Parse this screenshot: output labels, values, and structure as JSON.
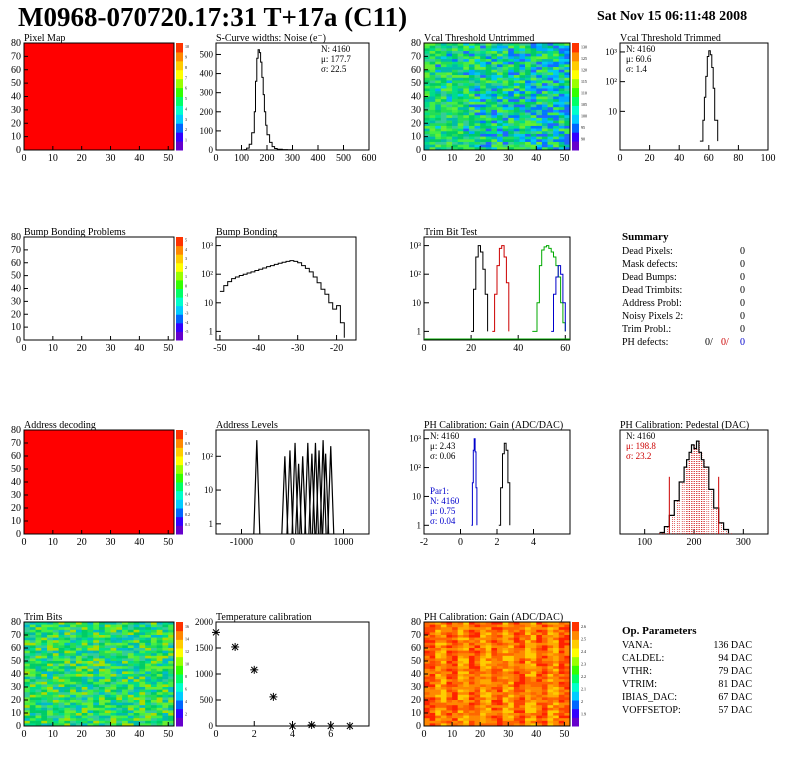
{
  "header": {
    "title": "M0968-070720.17:31 T+17a (C11)",
    "timestamp": "Sat Nov 15 06:11:48 2008"
  },
  "colors": {
    "hist": "#000000",
    "red": "#cc0000",
    "green": "#00aa00",
    "blue": "#0000cc",
    "map_red": "#ff0000"
  },
  "chart_data": [
    {
      "id": "pixel-map",
      "type": "heatmap",
      "title": "Pixel Map",
      "fill": "uniform-max",
      "xticks": [
        0,
        10,
        20,
        30,
        40,
        50
      ],
      "yticks": [
        0,
        10,
        20,
        30,
        40,
        50,
        60,
        70,
        80
      ],
      "colorbar_ticks": [
        "1",
        "2",
        "3",
        "4",
        "5",
        "6",
        "7",
        "8",
        "9",
        "10"
      ]
    },
    {
      "id": "noise",
      "type": "line",
      "title": "S-Curve widths: Noise (e⁻)",
      "xticks": [
        0,
        100,
        200,
        300,
        400,
        500,
        600
      ],
      "yticks": [
        0,
        100,
        200,
        300,
        400,
        500
      ],
      "xlim": [
        0,
        600
      ],
      "ylim": [
        0,
        560
      ],
      "stats": [
        "N: 4160",
        "μ: 177.7",
        "σ: 22.5"
      ],
      "x": [
        100,
        110,
        120,
        130,
        140,
        150,
        155,
        160,
        165,
        170,
        175,
        180,
        185,
        190,
        195,
        200,
        210,
        220,
        230,
        240,
        260,
        280,
        300
      ],
      "y": [
        0,
        2,
        10,
        30,
        90,
        200,
        360,
        480,
        525,
        510,
        460,
        380,
        290,
        200,
        130,
        80,
        40,
        18,
        8,
        4,
        2,
        1,
        0
      ]
    },
    {
      "id": "vcal-untrimmed",
      "type": "heatmap",
      "title": "Vcal Threshold Untrimmed",
      "fill": "noisy-green-blue",
      "xticks": [
        0,
        10,
        20,
        30,
        40,
        50
      ],
      "yticks": [
        0,
        10,
        20,
        30,
        40,
        50,
        60,
        70,
        80
      ],
      "colorbar_ticks": [
        "90",
        "95",
        "100",
        "105",
        "110",
        "115",
        "120",
        "125",
        "130"
      ]
    },
    {
      "id": "vcal-trimmed",
      "type": "line",
      "title": "Vcal Threshold Trimmed",
      "log": true,
      "xticks": [
        0,
        20,
        40,
        60,
        80,
        100
      ],
      "yticks": [
        "10",
        "10²",
        "10³"
      ],
      "xlim": [
        0,
        100
      ],
      "ylim": [
        0.5,
        2000
      ],
      "stats": [
        "N: 4160",
        "μ: 60.6",
        "σ:  1.4"
      ],
      "x": [
        54,
        56,
        57,
        58,
        59,
        60,
        61,
        62,
        63,
        64,
        66
      ],
      "y": [
        1,
        5,
        30,
        150,
        700,
        1100,
        800,
        300,
        60,
        5,
        1
      ]
    },
    {
      "id": "bump-problems",
      "type": "heatmap",
      "title": "Bump Bonding Problems",
      "fill": "empty",
      "xticks": [
        0,
        10,
        20,
        30,
        40,
        50
      ],
      "yticks": [
        0,
        10,
        20,
        30,
        40,
        50,
        60,
        70,
        80
      ],
      "colorbar_ticks": [
        "-5",
        "-4",
        "-3",
        "-2",
        "-1",
        "0",
        "1",
        "2",
        "3",
        "4",
        "5"
      ]
    },
    {
      "id": "bump-bonding",
      "type": "line",
      "title": "Bump Bonding",
      "log": true,
      "xticks": [
        -50,
        -40,
        -30,
        -20
      ],
      "yticks": [
        "1",
        "10",
        "10²",
        "10³"
      ],
      "xlim": [
        -51,
        -15
      ],
      "ylim": [
        0.5,
        2000
      ],
      "x": [
        -50,
        -49,
        -48,
        -47,
        -46,
        -45,
        -44,
        -43,
        -42,
        -41,
        -40,
        -39,
        -38,
        -37,
        -36,
        -35,
        -34,
        -33,
        -32,
        -31,
        -30,
        -29,
        -28,
        -27,
        -26,
        -25,
        -24,
        -23,
        -22,
        -21,
        -20,
        -19,
        -18
      ],
      "y": [
        25,
        40,
        55,
        70,
        80,
        90,
        100,
        110,
        120,
        135,
        150,
        165,
        185,
        200,
        220,
        240,
        260,
        280,
        300,
        280,
        250,
        200,
        160,
        120,
        80,
        50,
        30,
        20,
        10,
        6,
        8,
        2,
        0.6
      ]
    },
    {
      "id": "trim-bits-test",
      "type": "line",
      "title": "Trim Bit Test",
      "log": true,
      "xticks": [
        0,
        20,
        40,
        60
      ],
      "yticks": [
        "1",
        "10",
        "10²",
        "10³"
      ],
      "xlim": [
        0,
        62
      ],
      "ylim": [
        0.5,
        2000
      ],
      "series": [
        {
          "color": "black",
          "x": [
            20,
            21,
            22,
            23,
            24,
            25,
            26,
            27
          ],
          "y": [
            1,
            30,
            400,
            1000,
            600,
            150,
            20,
            1
          ]
        },
        {
          "color": "red",
          "x": [
            29,
            30,
            31,
            32,
            33,
            34,
            35,
            36
          ],
          "y": [
            1,
            20,
            200,
            800,
            1000,
            400,
            50,
            1
          ]
        },
        {
          "color": "green",
          "x": [
            46,
            48,
            49,
            50,
            51,
            52,
            53,
            54,
            55,
            56,
            57,
            58,
            59,
            60
          ],
          "y": [
            1,
            10,
            200,
            700,
            900,
            1000,
            800,
            600,
            400,
            200,
            80,
            10,
            2,
            1
          ]
        },
        {
          "color": "blue",
          "x": [
            54,
            55,
            56,
            57,
            58,
            59,
            60
          ],
          "y": [
            1,
            20,
            80,
            200,
            100,
            10,
            1
          ]
        }
      ]
    },
    {
      "id": "address-decoding",
      "type": "heatmap",
      "title": "Address decoding",
      "fill": "uniform-max",
      "xticks": [
        0,
        10,
        20,
        30,
        40,
        50
      ],
      "yticks": [
        0,
        10,
        20,
        30,
        40,
        50,
        60,
        70,
        80
      ],
      "colorbar_ticks": [
        "0.1",
        "0.2",
        "0.3",
        "0.4",
        "0.5",
        "0.6",
        "0.7",
        "0.8",
        "0.9",
        "1"
      ]
    },
    {
      "id": "address-levels",
      "type": "line",
      "title": "Address Levels",
      "log": true,
      "xticks": [
        -1000,
        0,
        1000
      ],
      "yticks": [
        "1",
        "10",
        "10²"
      ],
      "xlim": [
        -1500,
        1500
      ],
      "ylim": [
        0.5,
        600
      ],
      "spikes": [
        [
          -700,
          300
        ],
        [
          -150,
          100
        ],
        [
          -50,
          150
        ],
        [
          50,
          250
        ],
        [
          120,
          60
        ],
        [
          200,
          100
        ],
        [
          300,
          250
        ],
        [
          380,
          120
        ],
        [
          450,
          250
        ],
        [
          520,
          150
        ],
        [
          600,
          300
        ],
        [
          650,
          120
        ],
        [
          750,
          200
        ]
      ]
    },
    {
      "id": "ph-gain",
      "type": "line",
      "title": "PH Calibration: Gain (ADC/DAC)",
      "log": true,
      "xticks": [
        -2,
        0,
        2,
        4
      ],
      "yticks": [
        "1",
        "10",
        "10²",
        "10³"
      ],
      "xlim": [
        -2,
        6
      ],
      "ylim": [
        0.5,
        2000
      ],
      "stats": [
        "N: 4160",
        "μ: 2.43",
        "σ: 0.06"
      ],
      "stats2": [
        "Par1:",
        "N: 4160",
        "μ: 0.75",
        "σ: 0.04"
      ],
      "series": [
        {
          "color": "black",
          "x": [
            2.1,
            2.2,
            2.3,
            2.4,
            2.5,
            2.6,
            2.7
          ],
          "y": [
            1,
            20,
            300,
            700,
            400,
            30,
            1
          ]
        },
        {
          "color": "blue",
          "x": [
            0.6,
            0.65,
            0.7,
            0.75,
            0.8,
            0.85,
            0.9
          ],
          "y": [
            1,
            30,
            400,
            1000,
            350,
            20,
            1
          ]
        }
      ]
    },
    {
      "id": "ph-pedestal",
      "type": "line",
      "title": "PH Calibration: Pedestal (DAC)",
      "xticks": [
        100,
        200,
        300
      ],
      "xlim": [
        50,
        350
      ],
      "ylim": [
        0,
        140
      ],
      "stats": [
        "N: 4160",
        "μ: 198.8",
        "σ: 23.2"
      ],
      "x": [
        130,
        140,
        150,
        160,
        170,
        180,
        185,
        190,
        195,
        200,
        205,
        210,
        215,
        220,
        230,
        240,
        250,
        260,
        270
      ],
      "y": [
        2,
        10,
        25,
        45,
        70,
        90,
        100,
        110,
        120,
        115,
        125,
        110,
        100,
        90,
        60,
        35,
        15,
        6,
        1
      ]
    },
    {
      "id": "trim-bits",
      "type": "heatmap",
      "title": "Trim Bits",
      "fill": "noisy-green",
      "xticks": [
        0,
        10,
        20,
        30,
        40,
        50
      ],
      "yticks": [
        0,
        10,
        20,
        30,
        40,
        50,
        60,
        70,
        80
      ],
      "colorbar_ticks": [
        "2",
        "4",
        "6",
        "8",
        "10",
        "12",
        "14",
        "16"
      ]
    },
    {
      "id": "temperature",
      "type": "scatter",
      "title": "Temperature calibration",
      "xticks": [
        0,
        2,
        4,
        6
      ],
      "yticks": [
        0,
        500,
        1000,
        1500,
        2000
      ],
      "xlim": [
        0,
        8
      ],
      "ylim": [
        0,
        2000
      ],
      "x": [
        0,
        1,
        2,
        3,
        4,
        5,
        6,
        7
      ],
      "y": [
        1800,
        1520,
        1080,
        560,
        0,
        20,
        0,
        0
      ]
    },
    {
      "id": "ph-gain-map",
      "type": "heatmap",
      "title": "PH Calibration: Gain (ADC/DAC)",
      "fill": "noisy-red",
      "xticks": [
        0,
        10,
        20,
        30,
        40,
        50
      ],
      "yticks": [
        0,
        10,
        20,
        30,
        40,
        50,
        60,
        70,
        80
      ],
      "colorbar_ticks": [
        "1.9",
        "2",
        "2.1",
        "2.2",
        "2.3",
        "2.4",
        "2.5",
        "2.6"
      ]
    }
  ],
  "summary": {
    "title": "Summary",
    "rows": [
      {
        "label": "Dead Pixels:",
        "value": "0"
      },
      {
        "label": "Mask defects:",
        "value": "0"
      },
      {
        "label": "Dead Bumps:",
        "value": "0"
      },
      {
        "label": "Dead Trimbits:",
        "value": "0"
      },
      {
        "label": "Address Probl:",
        "value": "0"
      },
      {
        "label": "Noisy Pixels 2:",
        "value": "0"
      },
      {
        "label": "Trim Probl.:",
        "value": "0"
      }
    ],
    "ph_defects": {
      "label": "PH defects:",
      "v1": "0/",
      "v2": "0/",
      "v3": "0"
    }
  },
  "op_parameters": {
    "title": "Op. Parameters",
    "rows": [
      {
        "label": "VANA:",
        "value": "136 DAC"
      },
      {
        "label": "CALDEL:",
        "value": "94 DAC"
      },
      {
        "label": "VTHR:",
        "value": "79 DAC"
      },
      {
        "label": "VTRIM:",
        "value": "81 DAC"
      },
      {
        "label": "IBIAS_DAC:",
        "value": "67 DAC"
      },
      {
        "label": "VOFFSETOP:",
        "value": "57 DAC"
      }
    ]
  }
}
